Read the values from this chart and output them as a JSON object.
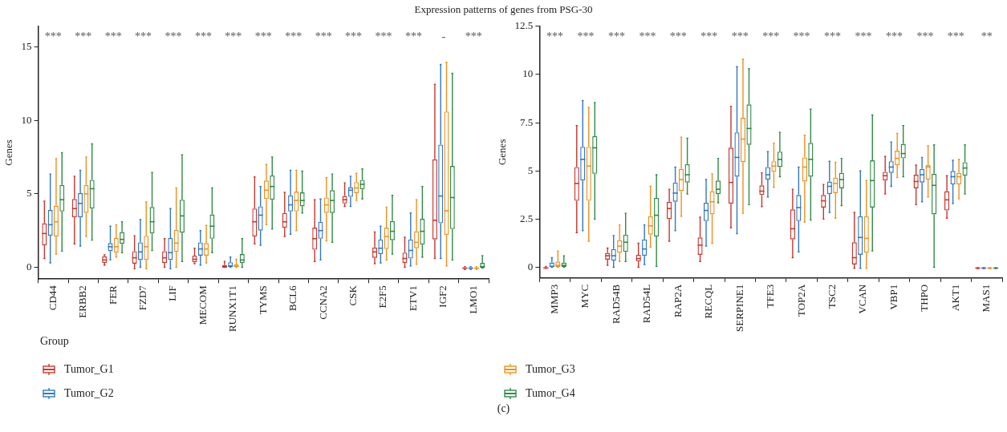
{
  "chart_data": [
    {
      "type": "box",
      "title": "Expression patterns of genes from PSG-30",
      "ylabel": "Genes",
      "legend_title": "Group",
      "legend": "bottom",
      "grid": false,
      "ylim": [
        -0.8,
        16.4
      ],
      "yticks": [
        0,
        5,
        10,
        15
      ],
      "categories": [
        "CD44",
        "ERBB2",
        "FER",
        "FZD7",
        "LIF",
        "MECOM",
        "RUNX1T1",
        "TYMS",
        "BCL6",
        "CCNA2",
        "CSK",
        "E2F5",
        "ETV1",
        "IGF2",
        "LMO1"
      ],
      "series": [
        {
          "name": "Tumor_G1",
          "color": "#c8372d",
          "boxes": [
            {
              "low": 0.6,
              "q1": 1.5,
              "median": 2.3,
              "q3": 3.0,
              "high": 4.5
            },
            {
              "low": 1.6,
              "q1": 3.4,
              "median": 4.0,
              "q3": 4.65,
              "high": 6.2
            },
            {
              "low": 0.15,
              "q1": 0.3,
              "median": 0.5,
              "q3": 0.75,
              "high": 0.85
            },
            {
              "low": -0.1,
              "q1": 0.25,
              "median": 0.65,
              "q3": 1.1,
              "high": 2.15
            },
            {
              "low": 0,
              "q1": 0.3,
              "median": 0.65,
              "q3": 1.1,
              "high": 1.95
            },
            {
              "low": 0.25,
              "q1": 0.35,
              "median": 0.55,
              "q3": 0.8,
              "high": 1.3
            },
            {
              "low": 0,
              "q1": 0,
              "median": 0.02,
              "q3": 0.15,
              "high": 0.4
            },
            {
              "low": 1.6,
              "q1": 2.1,
              "median": 3.1,
              "q3": 4.0,
              "high": 6.15
            },
            {
              "low": 2.1,
              "q1": 2.7,
              "median": 3.1,
              "q3": 3.7,
              "high": 5.1
            },
            {
              "low": 0.4,
              "q1": 1.2,
              "median": 1.95,
              "q3": 2.7,
              "high": 4.6
            },
            {
              "low": 4.15,
              "q1": 4.35,
              "median": 4.6,
              "q3": 4.85,
              "high": 5.75
            },
            {
              "low": 0.25,
              "q1": 0.65,
              "median": 1.05,
              "q3": 1.35,
              "high": 2.4
            },
            {
              "low": 0,
              "q1": 0.3,
              "median": 0.6,
              "q3": 1.0,
              "high": 2.05
            },
            {
              "low": 0.6,
              "q1": 1.9,
              "median": 3.2,
              "q3": 7.35,
              "high": 12.45
            },
            {
              "low": -0.15,
              "q1": -0.1,
              "median": -0.05,
              "q3": 0,
              "high": 0.05
            }
          ]
        },
        {
          "name": "Tumor_G2",
          "color": "#2f78c4",
          "boxes": [
            {
              "low": 0.3,
              "q1": 2.15,
              "median": 2.9,
              "q3": 3.9,
              "high": 6.35
            },
            {
              "low": 1.45,
              "q1": 3.4,
              "median": 4.35,
              "q3": 5.05,
              "high": 6.6
            },
            {
              "low": 0.5,
              "q1": 1.1,
              "median": 1.4,
              "q3": 1.65,
              "high": 2.8
            },
            {
              "low": 0,
              "q1": 0.5,
              "median": 1.05,
              "q3": 1.7,
              "high": 3.25
            },
            {
              "low": -0.1,
              "q1": 0.5,
              "median": 1.0,
              "q3": 2.0,
              "high": 4.0
            },
            {
              "low": 0.15,
              "q1": 0.8,
              "median": 1.25,
              "q3": 1.7,
              "high": 2.5
            },
            {
              "low": 0,
              "q1": 0,
              "median": 0.1,
              "q3": 0.35,
              "high": 0.7
            },
            {
              "low": 1.5,
              "q1": 2.5,
              "median": 3.55,
              "q3": 4.15,
              "high": 5.5
            },
            {
              "low": 2.25,
              "q1": 3.8,
              "median": 4.25,
              "q3": 4.9,
              "high": 6.6
            },
            {
              "low": 0.5,
              "q1": 1.95,
              "median": 2.5,
              "q3": 3.1,
              "high": 4.65
            },
            {
              "low": 4.15,
              "q1": 4.8,
              "median": 5.25,
              "q3": 5.45,
              "high": 6.2
            },
            {
              "low": 0.3,
              "q1": 0.9,
              "median": 1.3,
              "q3": 1.9,
              "high": 2.8
            },
            {
              "low": 0.1,
              "q1": 0.6,
              "median": 1.15,
              "q3": 1.9,
              "high": 3.7
            },
            {
              "low": 0.6,
              "q1": 3.0,
              "median": 4.85,
              "q3": 8.35,
              "high": 13.8
            },
            {
              "low": -0.15,
              "q1": -0.1,
              "median": -0.05,
              "q3": 0,
              "high": 0.05
            }
          ]
        },
        {
          "name": "Tumor_G3",
          "color": "#f0901e",
          "boxes": [
            {
              "low": 0.9,
              "q1": 2.1,
              "median": 3.1,
              "q3": 4.2,
              "high": 7.4
            },
            {
              "low": 2.1,
              "q1": 3.7,
              "median": 5.0,
              "q3": 5.6,
              "high": 7.5
            },
            {
              "low": 0.7,
              "q1": 1.0,
              "median": 1.4,
              "q3": 2.0,
              "high": 2.9
            },
            {
              "low": -0.1,
              "q1": 0.5,
              "median": 1.4,
              "q3": 2.15,
              "high": 4.45
            },
            {
              "low": 0,
              "q1": 1.05,
              "median": 1.65,
              "q3": 2.55,
              "high": 5.4
            },
            {
              "low": 0.3,
              "q1": 0.8,
              "median": 1.25,
              "q3": 1.65,
              "high": 2.85
            },
            {
              "low": 0,
              "q1": 0,
              "median": 0.08,
              "q3": 0.2,
              "high": 0.55
            },
            {
              "low": 2.9,
              "q1": 4.65,
              "median": 5.25,
              "q3": 5.9,
              "high": 7.0
            },
            {
              "low": 2.5,
              "q1": 3.8,
              "median": 4.55,
              "q3": 5.15,
              "high": 6.6
            },
            {
              "low": 1.8,
              "q1": 3.7,
              "median": 4.25,
              "q3": 4.75,
              "high": 6.1
            },
            {
              "low": 4.55,
              "q1": 5.05,
              "median": 5.4,
              "q3": 5.8,
              "high": 6.4
            },
            {
              "low": 0.5,
              "q1": 1.25,
              "median": 2.1,
              "q3": 2.7,
              "high": 4.1
            },
            {
              "low": 0.2,
              "q1": 1.3,
              "median": 1.7,
              "q3": 2.45,
              "high": 4.6
            },
            {
              "low": 0.1,
              "q1": 2.2,
              "median": 3.85,
              "q3": 10.6,
              "high": 13.95
            },
            {
              "low": -0.15,
              "q1": -0.1,
              "median": -0.05,
              "q3": 0,
              "high": 0.05
            }
          ]
        },
        {
          "name": "Tumor_G4",
          "color": "#2e8b45",
          "boxes": [
            {
              "low": 1.1,
              "q1": 3.8,
              "median": 4.6,
              "q3": 5.6,
              "high": 7.8
            },
            {
              "low": 1.85,
              "q1": 4.0,
              "median": 5.35,
              "q3": 5.95,
              "high": 8.4
            },
            {
              "low": 1.0,
              "q1": 1.6,
              "median": 1.9,
              "q3": 2.4,
              "high": 3.1
            },
            {
              "low": 1.15,
              "q1": 2.3,
              "median": 3.1,
              "q3": 4.1,
              "high": 6.45
            },
            {
              "low": 0.4,
              "q1": 2.35,
              "median": 3.5,
              "q3": 4.6,
              "high": 7.65
            },
            {
              "low": 1.0,
              "q1": 1.95,
              "median": 2.8,
              "q3": 3.6,
              "high": 5.4
            },
            {
              "low": 0,
              "q1": 0.3,
              "median": 0.5,
              "q3": 0.9,
              "high": 1.95
            },
            {
              "low": 2.6,
              "q1": 4.6,
              "median": 5.5,
              "q3": 6.25,
              "high": 7.5
            },
            {
              "low": 3.7,
              "q1": 4.15,
              "median": 4.55,
              "q3": 5.1,
              "high": 6.55
            },
            {
              "low": 1.7,
              "q1": 3.7,
              "median": 4.55,
              "q3": 5.25,
              "high": 6.35
            },
            {
              "low": 4.65,
              "q1": 5.3,
              "median": 5.65,
              "q3": 5.95,
              "high": 6.7
            },
            {
              "low": 0.9,
              "q1": 1.85,
              "median": 2.45,
              "q3": 3.15,
              "high": 4.9
            },
            {
              "low": 0.7,
              "q1": 1.55,
              "median": 2.45,
              "q3": 3.3,
              "high": 5.5
            },
            {
              "low": 0.5,
              "q1": 2.6,
              "median": 4.75,
              "q3": 6.9,
              "high": 13.2
            },
            {
              "low": -0.05,
              "q1": -0.05,
              "median": 0.05,
              "q3": 0.3,
              "high": 0.8
            }
          ]
        }
      ],
      "annotations": [
        "***",
        "***",
        "***",
        "***",
        "***",
        "***",
        "***",
        "***",
        "***",
        "***",
        "***",
        "***",
        "***",
        "-",
        "***",
        "(c)"
      ]
    },
    {
      "type": "box",
      "ylabel": "Genes",
      "grid": false,
      "ylim": [
        -0.55,
        12.5
      ],
      "yticks": [
        0,
        2.5,
        5,
        7.5,
        10,
        12.5
      ],
      "categories": [
        "MMP3",
        "MYC",
        "RAD54B",
        "RAD54L",
        "RAP2A",
        "RECQL",
        "SERPINE1",
        "TFE3",
        "TOP2A",
        "TSC2",
        "VCAN",
        "VBP1",
        "THPO",
        "AKT1",
        "MAS1"
      ],
      "series": [
        {
          "color": "#c8372d",
          "boxes": [
            {
              "low": -0.05,
              "q1": -0.05,
              "median": -0.03,
              "q3": 0,
              "high": 0.05
            },
            {
              "low": 1.8,
              "q1": 3.45,
              "median": 4.35,
              "q3": 5.2,
              "high": 7.35
            },
            {
              "low": 0.1,
              "q1": 0.4,
              "median": 0.6,
              "q3": 0.75,
              "high": 1.0
            },
            {
              "low": 0,
              "q1": 0.3,
              "median": 0.45,
              "q3": 0.65,
              "high": 1.25
            },
            {
              "low": 1.35,
              "q1": 2.5,
              "median": 3.05,
              "q3": 3.4,
              "high": 4.05
            },
            {
              "low": 0.3,
              "q1": 0.65,
              "median": 1.15,
              "q3": 1.55,
              "high": 2.6
            },
            {
              "low": 2.05,
              "q1": 3.3,
              "median": 4.4,
              "q3": 6.2,
              "high": 8.35
            },
            {
              "low": 3.15,
              "q1": 3.75,
              "median": 3.95,
              "q3": 4.25,
              "high": 4.9
            },
            {
              "low": 0.5,
              "q1": 1.45,
              "median": 2.0,
              "q3": 3.0,
              "high": 4.05
            },
            {
              "low": 2.5,
              "q1": 3.1,
              "median": 3.45,
              "q3": 3.75,
              "high": 4.3
            },
            {
              "low": -0.05,
              "q1": 0.15,
              "median": 0.5,
              "q3": 1.3,
              "high": 2.85
            },
            {
              "low": 3.8,
              "q1": 4.5,
              "median": 4.75,
              "q3": 4.95,
              "high": 5.75
            },
            {
              "low": 3.25,
              "q1": 4.1,
              "median": 4.45,
              "q3": 4.8,
              "high": 5.3
            },
            {
              "low": 2.55,
              "q1": 2.95,
              "median": 3.5,
              "q3": 3.95,
              "high": 4.75
            },
            {
              "low": -0.06,
              "q1": -0.05,
              "median": -0.04,
              "q3": -0.03,
              "high": -0.02
            }
          ]
        },
        {
          "color": "#2f78c4",
          "boxes": [
            {
              "low": 0,
              "q1": 0,
              "median": 0.05,
              "q3": 0.25,
              "high": 0.5
            },
            {
              "low": 1.9,
              "q1": 4.5,
              "median": 5.6,
              "q3": 6.25,
              "high": 8.65
            },
            {
              "low": 0,
              "q1": 0.35,
              "median": 0.6,
              "q3": 0.95,
              "high": 1.65
            },
            {
              "low": 0.15,
              "q1": 0.6,
              "median": 0.95,
              "q3": 1.45,
              "high": 2.2
            },
            {
              "low": 1.9,
              "q1": 3.4,
              "median": 3.85,
              "q3": 4.4,
              "high": 5.2
            },
            {
              "low": 1.1,
              "q1": 2.4,
              "median": 2.95,
              "q3": 3.35,
              "high": 4.55
            },
            {
              "low": 1.75,
              "q1": 4.7,
              "median": 5.7,
              "q3": 7.0,
              "high": 10.4
            },
            {
              "low": 3.65,
              "q1": 4.55,
              "median": 4.8,
              "q3": 5.2,
              "high": 6.0
            },
            {
              "low": 0.8,
              "q1": 2.4,
              "median": 3.1,
              "q3": 3.75,
              "high": 5.2
            },
            {
              "low": 2.85,
              "q1": 3.8,
              "median": 4.2,
              "q3": 4.45,
              "high": 5.5
            },
            {
              "low": -0.05,
              "q1": 0.65,
              "median": 1.55,
              "q3": 2.65,
              "high": 5.0
            },
            {
              "low": 4.2,
              "q1": 4.9,
              "median": 5.2,
              "q3": 5.5,
              "high": 6.5
            },
            {
              "low": 3.4,
              "q1": 4.4,
              "median": 4.8,
              "q3": 5.1,
              "high": 5.7
            },
            {
              "low": 3.3,
              "q1": 4.3,
              "median": 4.7,
              "q3": 5.0,
              "high": 5.55
            },
            {
              "low": -0.06,
              "q1": -0.05,
              "median": -0.04,
              "q3": -0.03,
              "high": -0.02
            }
          ]
        },
        {
          "color": "#f0901e",
          "boxes": [
            {
              "low": 0,
              "q1": 0,
              "median": 0.1,
              "q3": 0.3,
              "high": 0.85
            },
            {
              "low": 1.35,
              "q1": 3.45,
              "median": 5.25,
              "q3": 6.25,
              "high": 8.3
            },
            {
              "low": 0.3,
              "q1": 0.75,
              "median": 1.1,
              "q3": 1.4,
              "high": 2.2
            },
            {
              "low": 1.05,
              "q1": 1.7,
              "median": 2.15,
              "q3": 2.65,
              "high": 4.2
            },
            {
              "low": 2.65,
              "q1": 3.95,
              "median": 4.55,
              "q3": 5.1,
              "high": 6.75
            },
            {
              "low": 1.25,
              "q1": 2.75,
              "median": 3.4,
              "q3": 3.95,
              "high": 4.85
            },
            {
              "low": 2.8,
              "q1": 5.45,
              "median": 6.65,
              "q3": 7.75,
              "high": 10.8
            },
            {
              "low": 4.15,
              "q1": 4.95,
              "median": 5.25,
              "q3": 5.5,
              "high": 6.45
            },
            {
              "low": 2.35,
              "q1": 4.45,
              "median": 5.2,
              "q3": 5.7,
              "high": 6.85
            },
            {
              "low": 2.55,
              "q1": 3.85,
              "median": 4.35,
              "q3": 4.65,
              "high": 5.45
            },
            {
              "low": -0.05,
              "q1": 0.75,
              "median": 1.5,
              "q3": 2.65,
              "high": 4.5
            },
            {
              "low": 4.65,
              "q1": 5.3,
              "median": 5.65,
              "q3": 6.05,
              "high": 6.95
            },
            {
              "low": 3.65,
              "q1": 4.55,
              "median": 5.2,
              "q3": 5.3,
              "high": 6.3
            },
            {
              "low": 3.55,
              "q1": 4.3,
              "median": 4.7,
              "q3": 4.9,
              "high": 5.6
            },
            {
              "low": -0.06,
              "q1": -0.05,
              "median": -0.04,
              "q3": -0.03,
              "high": -0.02
            }
          ]
        },
        {
          "color": "#2e8b45",
          "boxes": [
            {
              "low": 0,
              "q1": 0,
              "median": 0.1,
              "q3": 0.25,
              "high": 0.6
            },
            {
              "low": 2.5,
              "q1": 4.85,
              "median": 6.2,
              "q3": 6.8,
              "high": 8.55
            },
            {
              "low": 0.3,
              "q1": 0.8,
              "median": 1.3,
              "q3": 1.7,
              "high": 2.8
            },
            {
              "low": 0.05,
              "q1": 1.6,
              "median": 2.7,
              "q3": 3.6,
              "high": 4.8
            },
            {
              "low": 3.8,
              "q1": 4.4,
              "median": 4.8,
              "q3": 5.35,
              "high": 6.7
            },
            {
              "low": 3.35,
              "q1": 3.8,
              "median": 4.05,
              "q3": 4.5,
              "high": 5.65
            },
            {
              "low": 3.25,
              "q1": 6.35,
              "median": 7.2,
              "q3": 8.45,
              "high": 10.3
            },
            {
              "low": 4.7,
              "q1": 5.2,
              "median": 5.6,
              "q3": 6.0,
              "high": 7.0
            },
            {
              "low": 2.45,
              "q1": 4.7,
              "median": 5.6,
              "q3": 6.45,
              "high": 8.2
            },
            {
              "low": 3.2,
              "q1": 4.1,
              "median": 4.55,
              "q3": 4.9,
              "high": 5.65
            },
            {
              "low": 0.85,
              "q1": 3.1,
              "median": 4.5,
              "q3": 5.55,
              "high": 7.9
            },
            {
              "low": 4.7,
              "q1": 5.65,
              "median": 5.9,
              "q3": 6.4,
              "high": 7.35
            },
            {
              "low": 0,
              "q1": 2.75,
              "median": 4.25,
              "q3": 4.85,
              "high": 6.35
            },
            {
              "low": 3.8,
              "q1": 4.75,
              "median": 5.15,
              "q3": 5.45,
              "high": 6.35
            },
            {
              "low": -0.06,
              "q1": -0.05,
              "median": -0.04,
              "q3": -0.03,
              "high": -0.02
            }
          ]
        }
      ],
      "annotations": [
        "***",
        "***",
        "***",
        "***",
        "***",
        "***",
        "***",
        "***",
        "***",
        "***",
        "***",
        "***",
        "***",
        "***",
        "**"
      ]
    }
  ]
}
